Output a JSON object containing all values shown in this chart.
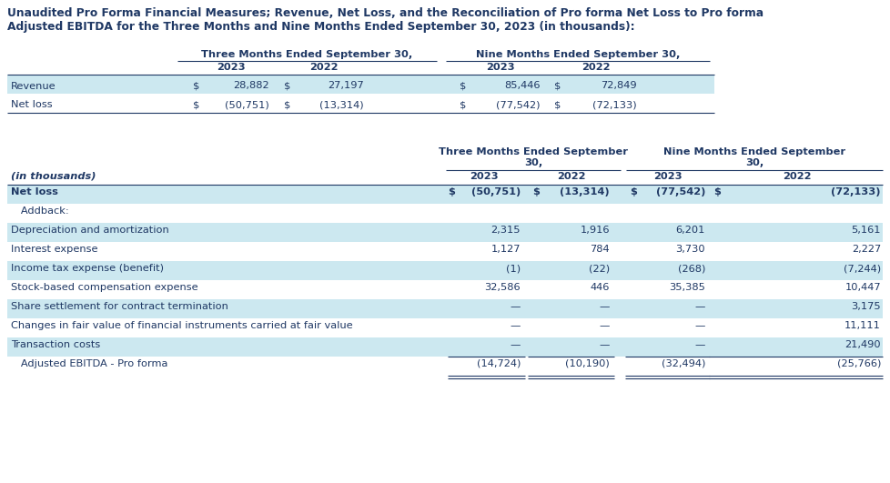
{
  "title_line1": "Unaudited Pro Forma Financial Measures; Revenue, Net Loss, and the Reconciliation of Pro forma Net Loss to Pro forma",
  "title_line2": "Adjusted EBITDA for the Three Months and Nine Months Ended September 30, 2023 (in thousands):",
  "bg_color": "#ffffff",
  "light_blue": "#cce8f0",
  "font_color": "#1f3864",
  "t1": {
    "hdr1_three": "Three Months Ended September 30,",
    "hdr1_nine": "Nine Months Ended September 30,",
    "hdr2": [
      "2023",
      "2022",
      "2023",
      "2022"
    ],
    "rows": [
      {
        "label": "Revenue",
        "dollar1": "$",
        "v1": "28,882",
        "dollar2": "$",
        "v2": "27,197",
        "dollar3": "$",
        "v3": "85,446",
        "dollar4": "$",
        "v4": "72,849",
        "bg": "#cce8f0"
      },
      {
        "label": "Net loss",
        "dollar1": "$",
        "v1": "(50,751)",
        "dollar2": "$",
        "v2": "(13,314)",
        "dollar3": "$",
        "v3": "(77,542)",
        "dollar4": "$",
        "v4": "(72,133)",
        "bg": "#ffffff"
      }
    ]
  },
  "t2": {
    "hdr1_three": "Three Months Ended September\n30,",
    "hdr1_nine": "Nine Months Ended September\n30,",
    "hdr2": [
      "2023",
      "2022",
      "2023",
      "2022"
    ],
    "in_thousands_label": "(in thousands)",
    "rows": [
      {
        "label": "Net loss",
        "dollar1": "$",
        "v1": "(50,751)",
        "dollar2": "$",
        "v2": "(13,314)",
        "dollar3": "$",
        "v3": "(77,542)",
        "dollar4": "$",
        "v4": "(72,133)",
        "bg": "#cce8f0",
        "bold": true,
        "indent": false
      },
      {
        "label": "   Addback:",
        "dollar1": "",
        "v1": "",
        "dollar2": "",
        "v2": "",
        "dollar3": "",
        "v3": "",
        "dollar4": "",
        "v4": "",
        "bg": "#ffffff",
        "bold": false,
        "indent": false
      },
      {
        "label": "Depreciation and amortization",
        "dollar1": "",
        "v1": "2,315",
        "dollar2": "",
        "v2": "1,916",
        "dollar3": "",
        "v3": "6,201",
        "dollar4": "",
        "v4": "5,161",
        "bg": "#cce8f0",
        "bold": false,
        "indent": false
      },
      {
        "label": "Interest expense",
        "dollar1": "",
        "v1": "1,127",
        "dollar2": "",
        "v2": "784",
        "dollar3": "",
        "v3": "3,730",
        "dollar4": "",
        "v4": "2,227",
        "bg": "#ffffff",
        "bold": false,
        "indent": false
      },
      {
        "label": "Income tax expense (benefit)",
        "dollar1": "",
        "v1": "(1)",
        "dollar2": "",
        "v2": "(22)",
        "dollar3": "",
        "v3": "(268)",
        "dollar4": "",
        "v4": "(7,244)",
        "bg": "#cce8f0",
        "bold": false,
        "indent": false
      },
      {
        "label": "Stock-based compensation expense",
        "dollar1": "",
        "v1": "32,586",
        "dollar2": "",
        "v2": "446",
        "dollar3": "",
        "v3": "35,385",
        "dollar4": "",
        "v4": "10,447",
        "bg": "#ffffff",
        "bold": false,
        "indent": false
      },
      {
        "label": "Share settlement for contract termination",
        "dollar1": "",
        "v1": "—",
        "dollar2": "",
        "v2": "—",
        "dollar3": "",
        "v3": "—",
        "dollar4": "",
        "v4": "3,175",
        "bg": "#cce8f0",
        "bold": false,
        "indent": false
      },
      {
        "label": "Changes in fair value of financial instruments carried at fair value",
        "dollar1": "",
        "v1": "—",
        "dollar2": "",
        "v2": "—",
        "dollar3": "",
        "v3": "—",
        "dollar4": "",
        "v4": "11,111",
        "bg": "#ffffff",
        "bold": false,
        "indent": false
      },
      {
        "label": "Transaction costs",
        "dollar1": "",
        "v1": "—",
        "dollar2": "",
        "v2": "—",
        "dollar3": "",
        "v3": "—",
        "dollar4": "",
        "v4": "21,490",
        "bg": "#cce8f0",
        "bold": false,
        "indent": false
      },
      {
        "label": "   Adjusted EBITDA - Pro forma",
        "dollar1": "",
        "v1": "(14,724)",
        "dollar2": "",
        "v2": "(10,190)",
        "dollar3": "",
        "v3": "(32,494)",
        "dollar4": "",
        "v4": "(25,766)",
        "bg": "#ffffff",
        "bold": false,
        "indent": true
      }
    ]
  }
}
